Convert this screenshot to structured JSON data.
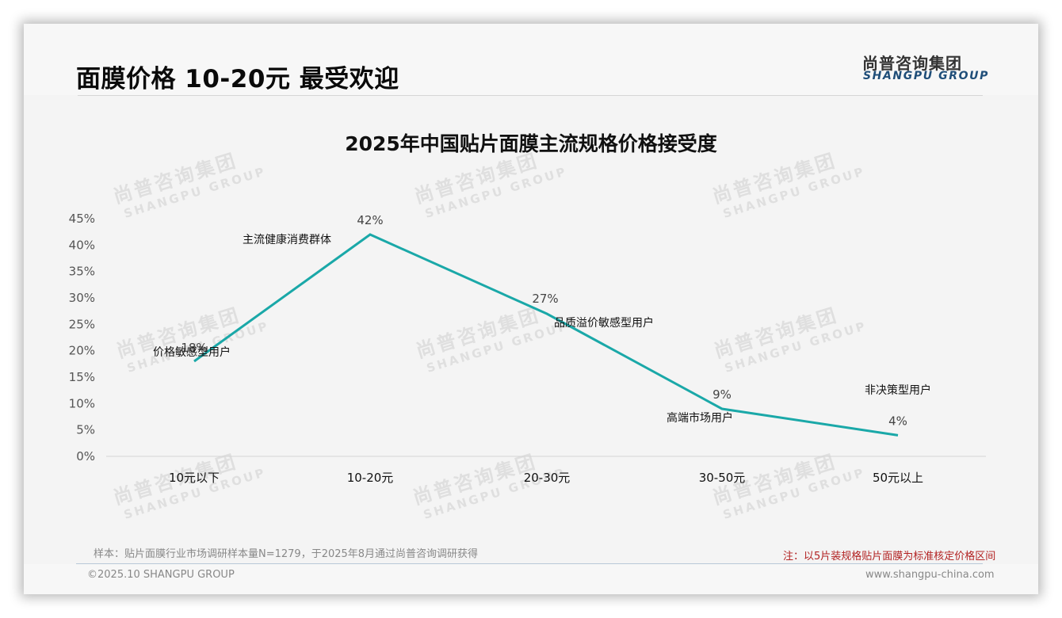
{
  "header": {
    "page_title": "面膜价格 10-20元 最受欢迎",
    "logo_cn": "尚普咨询集团",
    "logo_en": "SHANGPU GROUP"
  },
  "watermark": {
    "cn": "尚普咨询集团",
    "en": "SHANGPU GROUP"
  },
  "chart_data": {
    "type": "line",
    "title": "2025年中国贴片面膜主流规格价格接受度",
    "categories": [
      "10元以下",
      "10-20元",
      "20-30元",
      "30-50元",
      "50元以上"
    ],
    "values": [
      18,
      42,
      27,
      9,
      4
    ],
    "value_labels": [
      "18%",
      "42%",
      "27%",
      "9%",
      "4%"
    ],
    "annotations": [
      "价格敏感型用户",
      "主流健康消费群体",
      "品质溢价敏感型用户",
      "高端市场用户",
      "非决策型用户"
    ],
    "yticks": [
      "0%",
      "5%",
      "10%",
      "15%",
      "20%",
      "25%",
      "30%",
      "35%",
      "40%",
      "45%"
    ],
    "ylim": [
      0,
      45
    ],
    "xlabel": "",
    "ylabel": "",
    "grid": false,
    "legend": "none",
    "line_color": "#1aa8a8"
  },
  "footer": {
    "sample_note": "样本：贴片面膜行业市场调研样本量N=1279，于2025年8月通过尚普咨询调研获得",
    "red_note": "注：以5片装规格贴片面膜为标准核定价格区间",
    "copyright": "©2025.10 SHANGPU GROUP",
    "website": "www.shangpu-china.com",
    "red_note_color": "#b22222"
  }
}
